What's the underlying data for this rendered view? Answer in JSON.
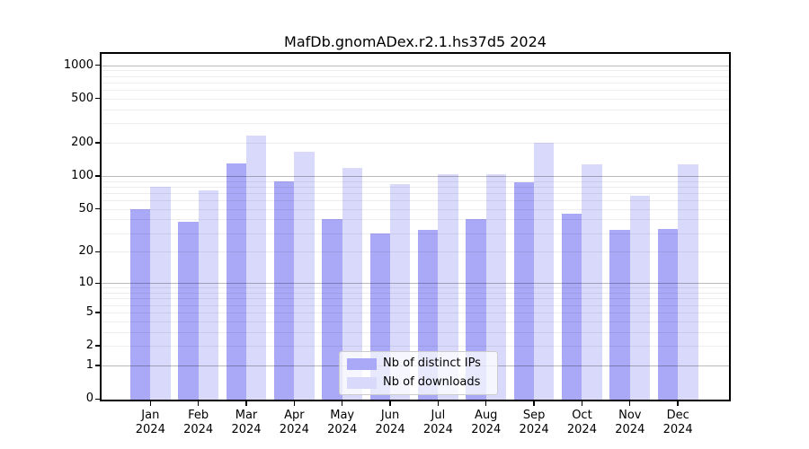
{
  "figure": {
    "title": "MafDb.gnomADex.r2.1.hs37d5 2024",
    "background": "#ffffff"
  },
  "chart_data": {
    "type": "bar",
    "title": "MafDb.gnomADex.r2.1.hs37d5 2024",
    "categories": [
      "Jan 2024",
      "Feb 2024",
      "Mar 2024",
      "Apr 2024",
      "May 2024",
      "Jun 2024",
      "Jul 2024",
      "Aug 2024",
      "Sep 2024",
      "Oct 2024",
      "Nov 2024",
      "Dec 2024"
    ],
    "series": [
      {
        "name": "Nb of distinct IPs",
        "color": "#a9a9f7",
        "values": [
          50,
          38,
          130,
          90,
          40,
          30,
          32,
          40,
          88,
          45,
          32,
          33
        ]
      },
      {
        "name": "Nb of downloads",
        "color": "#d9d9fb",
        "values": [
          80,
          74,
          230,
          166,
          118,
          84,
          103,
          104,
          199,
          128,
          66,
          127
        ]
      }
    ],
    "xlabel": "",
    "ylabel": "",
    "yscale": "log10(1+v)",
    "yticks": [
      0,
      1,
      2,
      5,
      10,
      20,
      50,
      100,
      200,
      500,
      1000
    ],
    "ylim": [
      0,
      1240
    ],
    "grid": "horizontal only; faint minor log lines, darker lines at 1,10,100,1000; drawn over bars",
    "legend_position": "inside bottom-center",
    "colors": {
      "bar_dark": "#a9a9f7",
      "bar_light": "#d9d9fb",
      "grid_minor": "rgba(0,0,0,0.07)",
      "grid_major": "rgba(0,0,0,0.27)",
      "spine": "#000000",
      "legend_border": "#cccccc"
    }
  }
}
